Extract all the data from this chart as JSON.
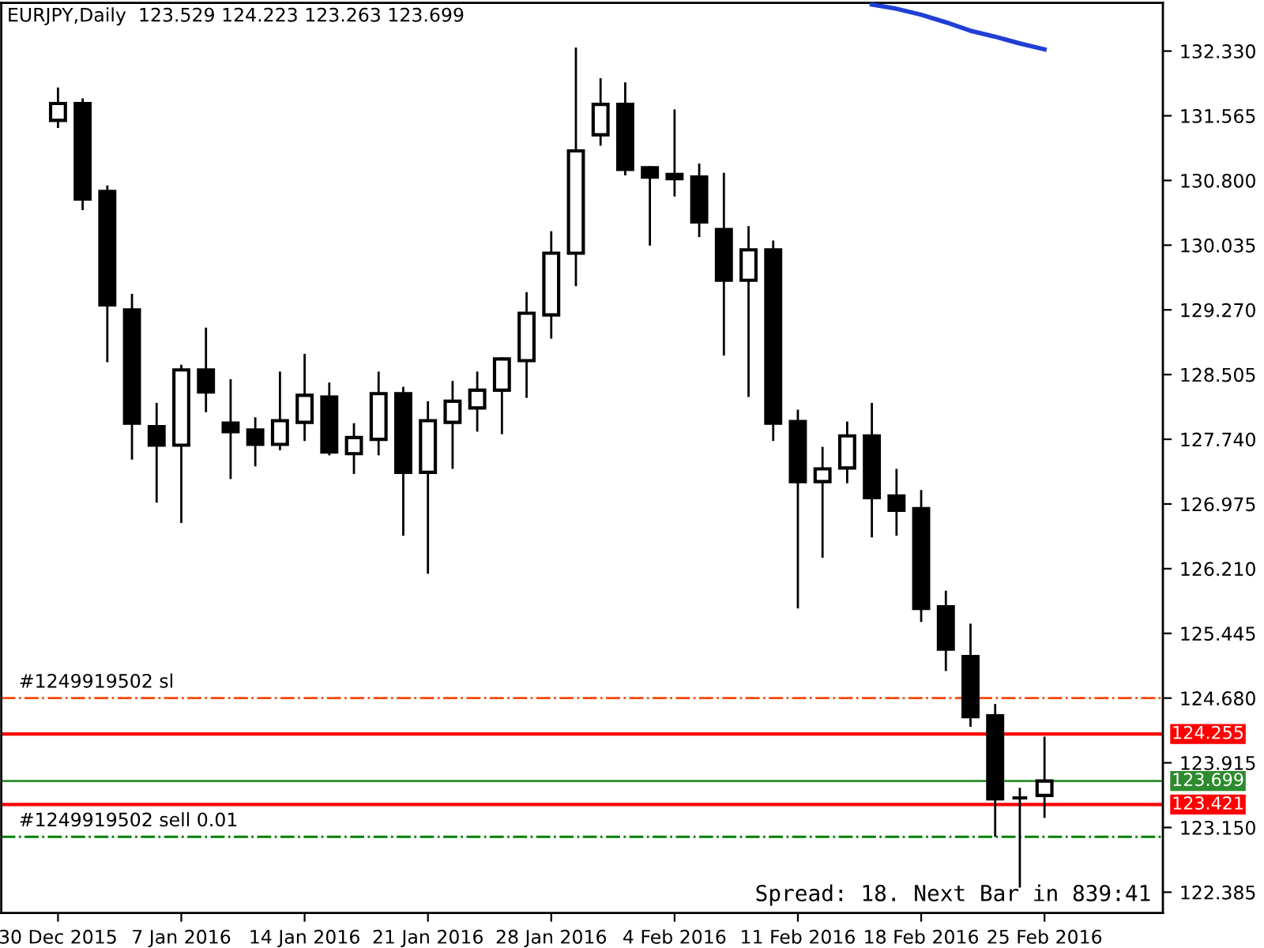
{
  "chart_data": {
    "type": "candlestick",
    "title": "EURJPY,Daily  123.529 124.223 123.263 123.699",
    "categories": [
      "30 Dec 2015",
      null,
      null,
      null,
      null,
      "7 Jan 2016",
      null,
      null,
      null,
      null,
      "14 Jan 2016",
      null,
      null,
      null,
      null,
      "21 Jan 2016",
      null,
      null,
      null,
      null,
      "28 Jan 2016",
      null,
      null,
      null,
      null,
      "4 Feb 2016",
      null,
      null,
      null,
      null,
      "11 Feb 2016",
      null,
      null,
      null,
      null,
      "18 Feb 2016",
      null,
      null,
      null,
      null,
      "25 Feb 2016"
    ],
    "ohlc": [
      [
        131.51,
        131.9,
        131.42,
        131.71
      ],
      [
        131.71,
        131.77,
        130.45,
        130.58
      ],
      [
        130.67,
        130.74,
        128.65,
        129.33
      ],
      [
        129.27,
        129.46,
        127.5,
        127.93
      ],
      [
        127.89,
        128.17,
        126.99,
        127.67
      ],
      [
        127.67,
        128.62,
        126.75,
        128.56
      ],
      [
        128.56,
        129.06,
        128.06,
        128.3
      ],
      [
        127.93,
        128.45,
        127.27,
        127.83
      ],
      [
        127.85,
        128.0,
        127.42,
        127.68
      ],
      [
        127.68,
        128.54,
        127.61,
        127.96
      ],
      [
        127.94,
        128.75,
        127.72,
        128.26
      ],
      [
        128.24,
        128.41,
        127.55,
        127.59
      ],
      [
        127.57,
        127.93,
        127.33,
        127.76
      ],
      [
        127.74,
        128.54,
        127.55,
        128.28
      ],
      [
        128.28,
        128.36,
        126.6,
        127.35
      ],
      [
        127.35,
        128.19,
        126.15,
        127.96
      ],
      [
        127.94,
        128.43,
        127.39,
        128.19
      ],
      [
        128.11,
        128.54,
        127.83,
        128.32
      ],
      [
        128.32,
        128.71,
        127.8,
        128.69
      ],
      [
        128.67,
        129.48,
        128.23,
        129.23
      ],
      [
        129.21,
        130.2,
        128.93,
        129.94
      ],
      [
        129.94,
        132.37,
        129.55,
        131.15
      ],
      [
        131.34,
        132.01,
        131.21,
        131.7
      ],
      [
        131.7,
        131.96,
        130.86,
        130.93
      ],
      [
        130.95,
        130.97,
        130.03,
        130.84
      ],
      [
        130.87,
        131.64,
        130.61,
        130.82
      ],
      [
        130.84,
        131.0,
        130.13,
        130.31
      ],
      [
        130.22,
        130.89,
        128.73,
        129.62
      ],
      [
        129.62,
        130.26,
        128.24,
        129.98
      ],
      [
        129.98,
        130.09,
        127.72,
        127.93
      ],
      [
        127.95,
        128.09,
        125.74,
        127.24
      ],
      [
        127.24,
        127.65,
        126.34,
        127.39
      ],
      [
        127.4,
        127.95,
        127.22,
        127.78
      ],
      [
        127.78,
        128.17,
        126.58,
        127.05
      ],
      [
        127.07,
        127.39,
        126.6,
        126.9
      ],
      [
        126.92,
        127.14,
        125.58,
        125.74
      ],
      [
        125.76,
        125.95,
        125.0,
        125.26
      ],
      [
        125.17,
        125.56,
        124.34,
        124.46
      ],
      [
        124.47,
        124.61,
        123.04,
        123.49
      ],
      [
        123.5,
        123.62,
        122.44,
        123.5
      ],
      [
        123.529,
        124.223,
        123.263,
        123.699
      ]
    ],
    "series": [
      {
        "type": "line",
        "color": "#1f3fd6",
        "values": [
          null,
          null,
          null,
          null,
          null,
          null,
          null,
          null,
          null,
          null,
          null,
          null,
          null,
          null,
          null,
          null,
          null,
          null,
          null,
          null,
          null,
          null,
          null,
          null,
          null,
          null,
          null,
          null,
          null,
          null,
          null,
          null,
          null,
          132.88,
          132.83,
          132.76,
          132.67,
          132.57,
          132.5,
          132.42,
          132.35
        ]
      }
    ],
    "ylim": [
      122.14,
      132.9
    ],
    "yticks": [
      "132.330",
      "131.565",
      "130.800",
      "130.035",
      "129.270",
      "128.505",
      "127.740",
      "126.975",
      "126.210",
      "125.445",
      "124.680",
      "123.915",
      "123.150",
      "122.385"
    ],
    "ref_lines": [
      {
        "axis": "y",
        "value": 124.68,
        "label": "#1249919502 sl",
        "color": "#ff4500",
        "line_style": "dashdot"
      },
      {
        "axis": "y",
        "value": 124.255,
        "label": "124.255",
        "color": "#ff0000",
        "line_style": "solid"
      },
      {
        "axis": "y",
        "value": 123.699,
        "label": "123.699",
        "color": "#2e8b2e",
        "line_style": "solid"
      },
      {
        "axis": "y",
        "value": 123.421,
        "label": "123.421",
        "color": "#ff0000",
        "line_style": "solid"
      },
      {
        "axis": "y",
        "value": 123.04,
        "label": "#1249919502 sell 0.01",
        "color": "#008000",
        "line_style": "dashdot"
      }
    ],
    "annotations": [
      "Spread: 18. Next Bar in 839:41"
    ],
    "grid": false,
    "legend": false
  }
}
